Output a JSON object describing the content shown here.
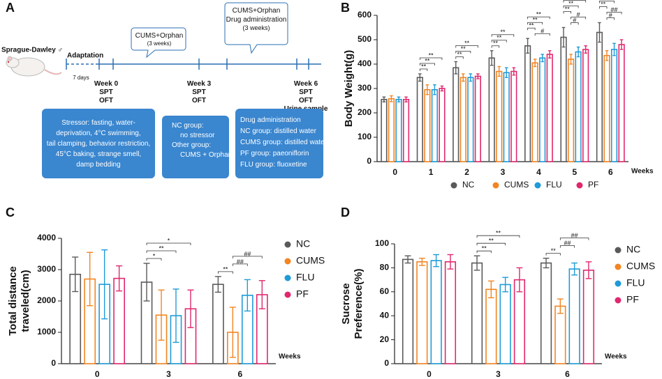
{
  "panel_a": {
    "label": "A",
    "subject": "Sprague-Dawley ♂",
    "adaptation": "Adaptation",
    "adaptation_days": "7 days",
    "timepoints": [
      {
        "lines": [
          "Week 0",
          "SPT",
          "OFT"
        ]
      },
      {
        "lines": [
          "Week 3",
          "SPT",
          "OFT"
        ]
      },
      {
        "lines": [
          "Week 6",
          "SPT",
          "OFT",
          "Urine sample"
        ]
      }
    ],
    "callouts": [
      {
        "lines": [
          "CUMS+Orphan",
          "(3 weeks)"
        ]
      },
      {
        "lines": [
          "CUMS+Orphan",
          "Drug administration",
          "(3 weeks)"
        ]
      }
    ],
    "boxes": [
      {
        "lines": [
          "Stressor: fasting, water-",
          "deprivation, 4°C swimming,",
          "tail clamping, behavior restriction,",
          "45°C baking, strange smell,",
          "damp bedding"
        ]
      },
      {
        "lines": [
          "NC group:",
          "no stressor",
          "Other group:",
          "CUMS + Orphan"
        ]
      },
      {
        "lines": [
          "Drug administration",
          "NC group:  distilled water",
          "CUMS group:  distilled water",
          "PF group:  paeoniflorin",
          "FLU group:  fluoxetine"
        ]
      }
    ]
  },
  "chart_data": [
    {
      "type": "bar",
      "panel": "B",
      "y_label": "Body Weight(g)",
      "x_label": "Weeks",
      "categories": [
        "0",
        "1",
        "2",
        "3",
        "4",
        "5",
        "6"
      ],
      "series": [
        {
          "name": "NC",
          "color": "#5a5a5a",
          "values": [
            255,
            345,
            385,
            425,
            475,
            510,
            530
          ],
          "errors": [
            10,
            15,
            25,
            30,
            30,
            40,
            40
          ]
        },
        {
          "name": "CUMS",
          "color": "#f28522",
          "values": [
            258,
            295,
            345,
            370,
            405,
            420,
            435
          ],
          "errors": [
            12,
            20,
            15,
            20,
            15,
            20,
            20
          ]
        },
        {
          "name": "FLU",
          "color": "#1f9bd7",
          "values": [
            255,
            295,
            345,
            365,
            425,
            450,
            460
          ],
          "errors": [
            10,
            20,
            15,
            20,
            15,
            20,
            25
          ]
        },
        {
          "name": "PF",
          "color": "#e0286e",
          "values": [
            255,
            300,
            350,
            370,
            440,
            460,
            480
          ],
          "errors": [
            10,
            10,
            10,
            15,
            15,
            15,
            20
          ]
        }
      ],
      "ylim": [
        0,
        600
      ],
      "yticks": [
        0,
        100,
        200,
        300,
        400,
        500,
        600
      ],
      "legend": "bottom",
      "annotations": [
        {
          "text": "**",
          "category": 1,
          "from": 0,
          "to": 1
        },
        {
          "text": "**",
          "category": 1,
          "from": 0,
          "to": 2
        },
        {
          "text": "**",
          "category": 1,
          "from": 0,
          "to": 3
        },
        {
          "text": "**",
          "category": 2,
          "from": 0,
          "to": 1
        },
        {
          "text": "**",
          "category": 2,
          "from": 0,
          "to": 2
        },
        {
          "text": "**",
          "category": 2,
          "from": 0,
          "to": 3
        },
        {
          "text": "**",
          "category": 3,
          "from": 0,
          "to": 1
        },
        {
          "text": "**",
          "category": 3,
          "from": 0,
          "to": 2
        },
        {
          "text": "**",
          "category": 3,
          "from": 0,
          "to": 3
        },
        {
          "text": "#",
          "category": 4,
          "from": 1,
          "to": 3
        },
        {
          "text": "**",
          "category": 4,
          "from": 0,
          "to": 1
        },
        {
          "text": "**",
          "category": 4,
          "from": 0,
          "to": 2
        },
        {
          "text": "**",
          "category": 4,
          "from": 0,
          "to": 3
        },
        {
          "text": "#",
          "category": 5,
          "from": 1,
          "to": 2
        },
        {
          "text": "#",
          "category": 5,
          "from": 1,
          "to": 3
        },
        {
          "text": "**",
          "category": 5,
          "from": 0,
          "to": 1
        },
        {
          "text": "**",
          "category": 5,
          "from": 0,
          "to": 2
        },
        {
          "text": "**",
          "category": 5,
          "from": 0,
          "to": 3
        },
        {
          "text": "#",
          "category": 6,
          "from": 1,
          "to": 2
        },
        {
          "text": "##",
          "category": 6,
          "from": 1,
          "to": 3
        },
        {
          "text": "**",
          "category": 6,
          "from": 0,
          "to": 1
        },
        {
          "text": "**",
          "category": 6,
          "from": 0,
          "to": 2
        },
        {
          "text": "**",
          "category": 6,
          "from": 0,
          "to": 3
        }
      ]
    },
    {
      "type": "bar",
      "panel": "C",
      "y_label": [
        "Total distance",
        "traveled(cm)"
      ],
      "x_label": "Weeks",
      "categories": [
        "0",
        "3",
        "6"
      ],
      "series": [
        {
          "name": "NC",
          "color": "#5a5a5a",
          "values": [
            2850,
            2600,
            2530
          ],
          "errors": [
            550,
            600,
            250
          ]
        },
        {
          "name": "CUMS",
          "color": "#f28522",
          "values": [
            2700,
            1550,
            1000
          ],
          "errors": [
            850,
            800,
            800
          ]
        },
        {
          "name": "FLU",
          "color": "#1f9bd7",
          "values": [
            2530,
            1530,
            2180
          ],
          "errors": [
            1100,
            850,
            500
          ]
        },
        {
          "name": "PF",
          "color": "#e0286e",
          "values": [
            2720,
            1750,
            2200
          ],
          "errors": [
            400,
            600,
            450
          ]
        }
      ],
      "ylim": [
        0,
        4000
      ],
      "yticks": [
        0,
        1000,
        2000,
        3000,
        4000
      ],
      "legend": "right",
      "annotations": [
        {
          "text": "*",
          "category": 1,
          "from": 0,
          "to": 1
        },
        {
          "text": "**",
          "category": 1,
          "from": 0,
          "to": 2
        },
        {
          "text": "*",
          "category": 1,
          "from": 0,
          "to": 3
        },
        {
          "text": "**",
          "category": 2,
          "from": 0,
          "to": 1
        },
        {
          "text": "##",
          "category": 2,
          "from": 1,
          "to": 2
        },
        {
          "text": "##",
          "category": 2,
          "from": 1,
          "to": 3
        }
      ]
    },
    {
      "type": "bar",
      "panel": "D",
      "y_label": [
        "Sucrose",
        "Preference(%)"
      ],
      "x_label": "Weeks",
      "categories": [
        "0",
        "3",
        "6"
      ],
      "series": [
        {
          "name": "NC",
          "color": "#5a5a5a",
          "values": [
            87,
            84,
            84
          ],
          "errors": [
            3,
            6,
            4
          ]
        },
        {
          "name": "CUMS",
          "color": "#f28522",
          "values": [
            85,
            62,
            48
          ],
          "errors": [
            3,
            7,
            6
          ]
        },
        {
          "name": "FLU",
          "color": "#1f9bd7",
          "values": [
            86,
            66,
            79
          ],
          "errors": [
            5,
            6,
            5
          ]
        },
        {
          "name": "PF",
          "color": "#e0286e",
          "values": [
            85,
            70,
            78
          ],
          "errors": [
            6,
            10,
            7
          ]
        }
      ],
      "ylim": [
        0,
        100
      ],
      "yticks": [
        0,
        20,
        40,
        60,
        80,
        100
      ],
      "legend": "right",
      "annotations": [
        {
          "text": "**",
          "category": 1,
          "from": 0,
          "to": 1
        },
        {
          "text": "**",
          "category": 1,
          "from": 0,
          "to": 2
        },
        {
          "text": "**",
          "category": 1,
          "from": 0,
          "to": 3
        },
        {
          "text": "**",
          "category": 2,
          "from": 0,
          "to": 1
        },
        {
          "text": "##",
          "category": 2,
          "from": 1,
          "to": 2
        },
        {
          "text": "##",
          "category": 2,
          "from": 1,
          "to": 3
        }
      ]
    }
  ]
}
